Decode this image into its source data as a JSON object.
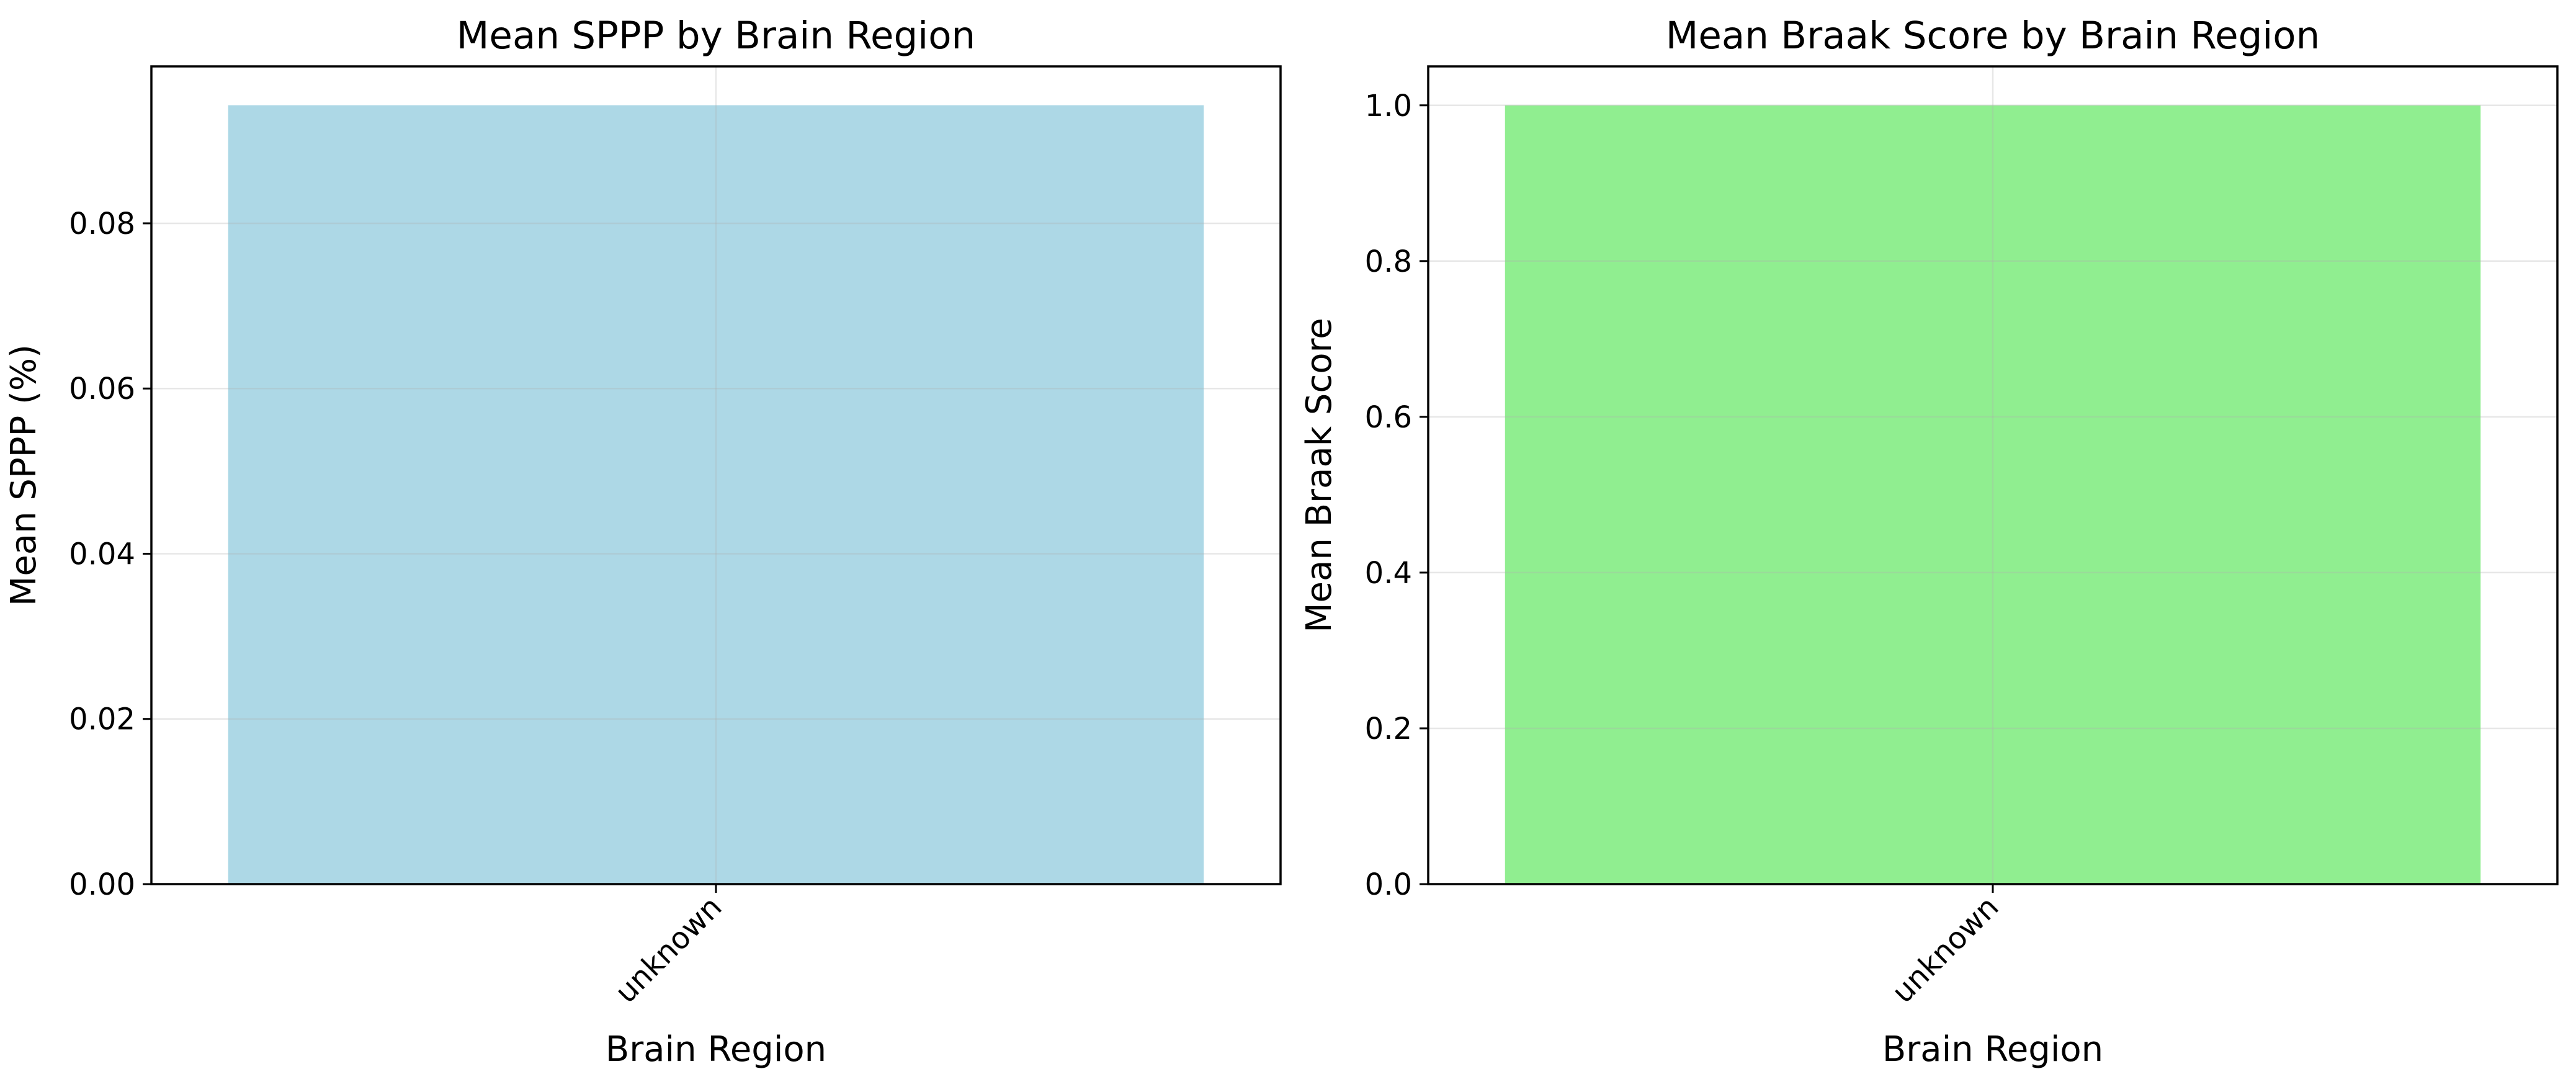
{
  "chart_data": [
    {
      "type": "bar",
      "title": "Mean SPPP by Brain Region",
      "xlabel": "Brain Region",
      "ylabel": "Mean SPPP (%)",
      "categories": [
        "unknown"
      ],
      "values": [
        0.0943
      ],
      "ylim": [
        0,
        0.099
      ],
      "yticks": [
        0,
        0.02,
        0.04,
        0.06,
        0.08
      ],
      "ytick_labels": [
        "0.00",
        "0.02",
        "0.04",
        "0.06",
        "0.08"
      ],
      "bar_color": "#add8e6",
      "grid": true,
      "legend": "none"
    },
    {
      "type": "bar",
      "title": "Mean Braak Score by Brain Region",
      "xlabel": "Brain Region",
      "ylabel": "Mean Braak Score",
      "categories": [
        "unknown"
      ],
      "values": [
        1.0
      ],
      "ylim": [
        0,
        1.05
      ],
      "yticks": [
        0,
        0.2,
        0.4,
        0.6,
        0.8,
        1.0
      ],
      "ytick_labels": [
        "0.0",
        "0.2",
        "0.4",
        "0.6",
        "0.8",
        "1.0"
      ],
      "bar_color": "#90ee90",
      "grid": true,
      "legend": "none"
    }
  ]
}
